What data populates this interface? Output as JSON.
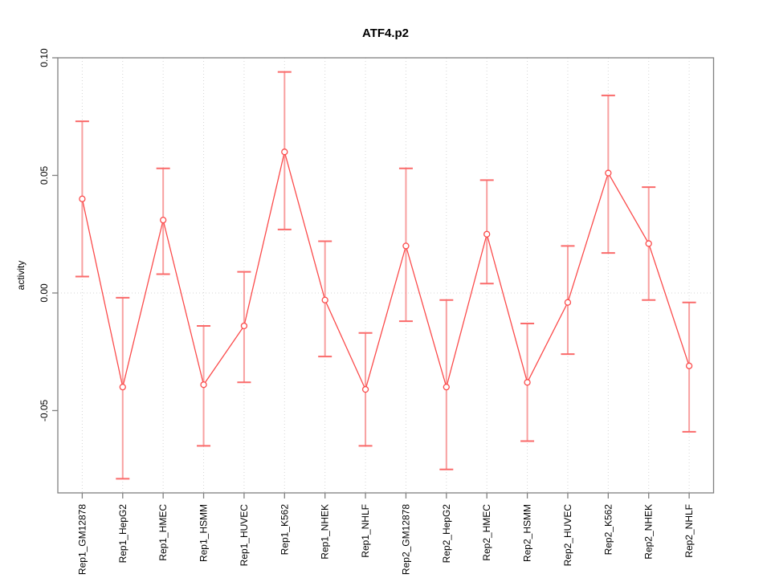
{
  "figure": {
    "background": "#FFFFFF"
  },
  "chart_data": {
    "type": "line",
    "title": "ATF4.p2",
    "xlabel": "",
    "ylabel": "activity",
    "legend": "none",
    "marker": "open-circle",
    "error_bars": true,
    "grid": {
      "vertical_dotted_per_category": true,
      "horizontal_dotted_at_zero": true
    },
    "ylim": [
      -0.085,
      0.1
    ],
    "yticks": [
      -0.05,
      0.0,
      0.05,
      0.1
    ],
    "ytick_labels": [
      "-0.05",
      "0.00",
      "0.05",
      "0.10"
    ],
    "categories": [
      "Rep1_GM12878",
      "Rep1_HepG2",
      "Rep1_HMEC",
      "Rep1_HSMM",
      "Rep1_HUVEC",
      "Rep1_K562",
      "Rep1_NHEK",
      "Rep1_NHLF",
      "Rep2_GM12878",
      "Rep2_HepG2",
      "Rep2_HMEC",
      "Rep2_HSMM",
      "Rep2_HUVEC",
      "Rep2_K562",
      "Rep2_NHEK",
      "Rep2_NHLF"
    ],
    "series": [
      {
        "name": "activity",
        "values": [
          0.04,
          -0.04,
          0.031,
          -0.039,
          -0.014,
          0.06,
          -0.003,
          -0.041,
          0.02,
          -0.04,
          0.025,
          -0.038,
          -0.004,
          0.051,
          0.021,
          -0.031
        ],
        "lower": [
          0.007,
          -0.079,
          0.008,
          -0.065,
          -0.038,
          0.027,
          -0.027,
          -0.065,
          -0.012,
          -0.075,
          0.004,
          -0.063,
          -0.026,
          0.017,
          -0.003,
          -0.059
        ],
        "upper": [
          0.073,
          -0.002,
          0.053,
          -0.014,
          0.009,
          0.094,
          0.022,
          -0.017,
          0.053,
          -0.003,
          0.048,
          -0.013,
          0.02,
          0.084,
          0.045,
          -0.004
        ]
      }
    ]
  },
  "colors": {
    "series_line": "#FB4B4B",
    "marker_stroke": "#FB4B4B",
    "marker_fill": "#FFFFFF",
    "error_stem": "#F8A0A0",
    "error_cap": "#FA6A6A",
    "grid": "#D5D5D5",
    "zero_line": "#D5D5D5",
    "axis": "#808080",
    "text": "#000000"
  }
}
